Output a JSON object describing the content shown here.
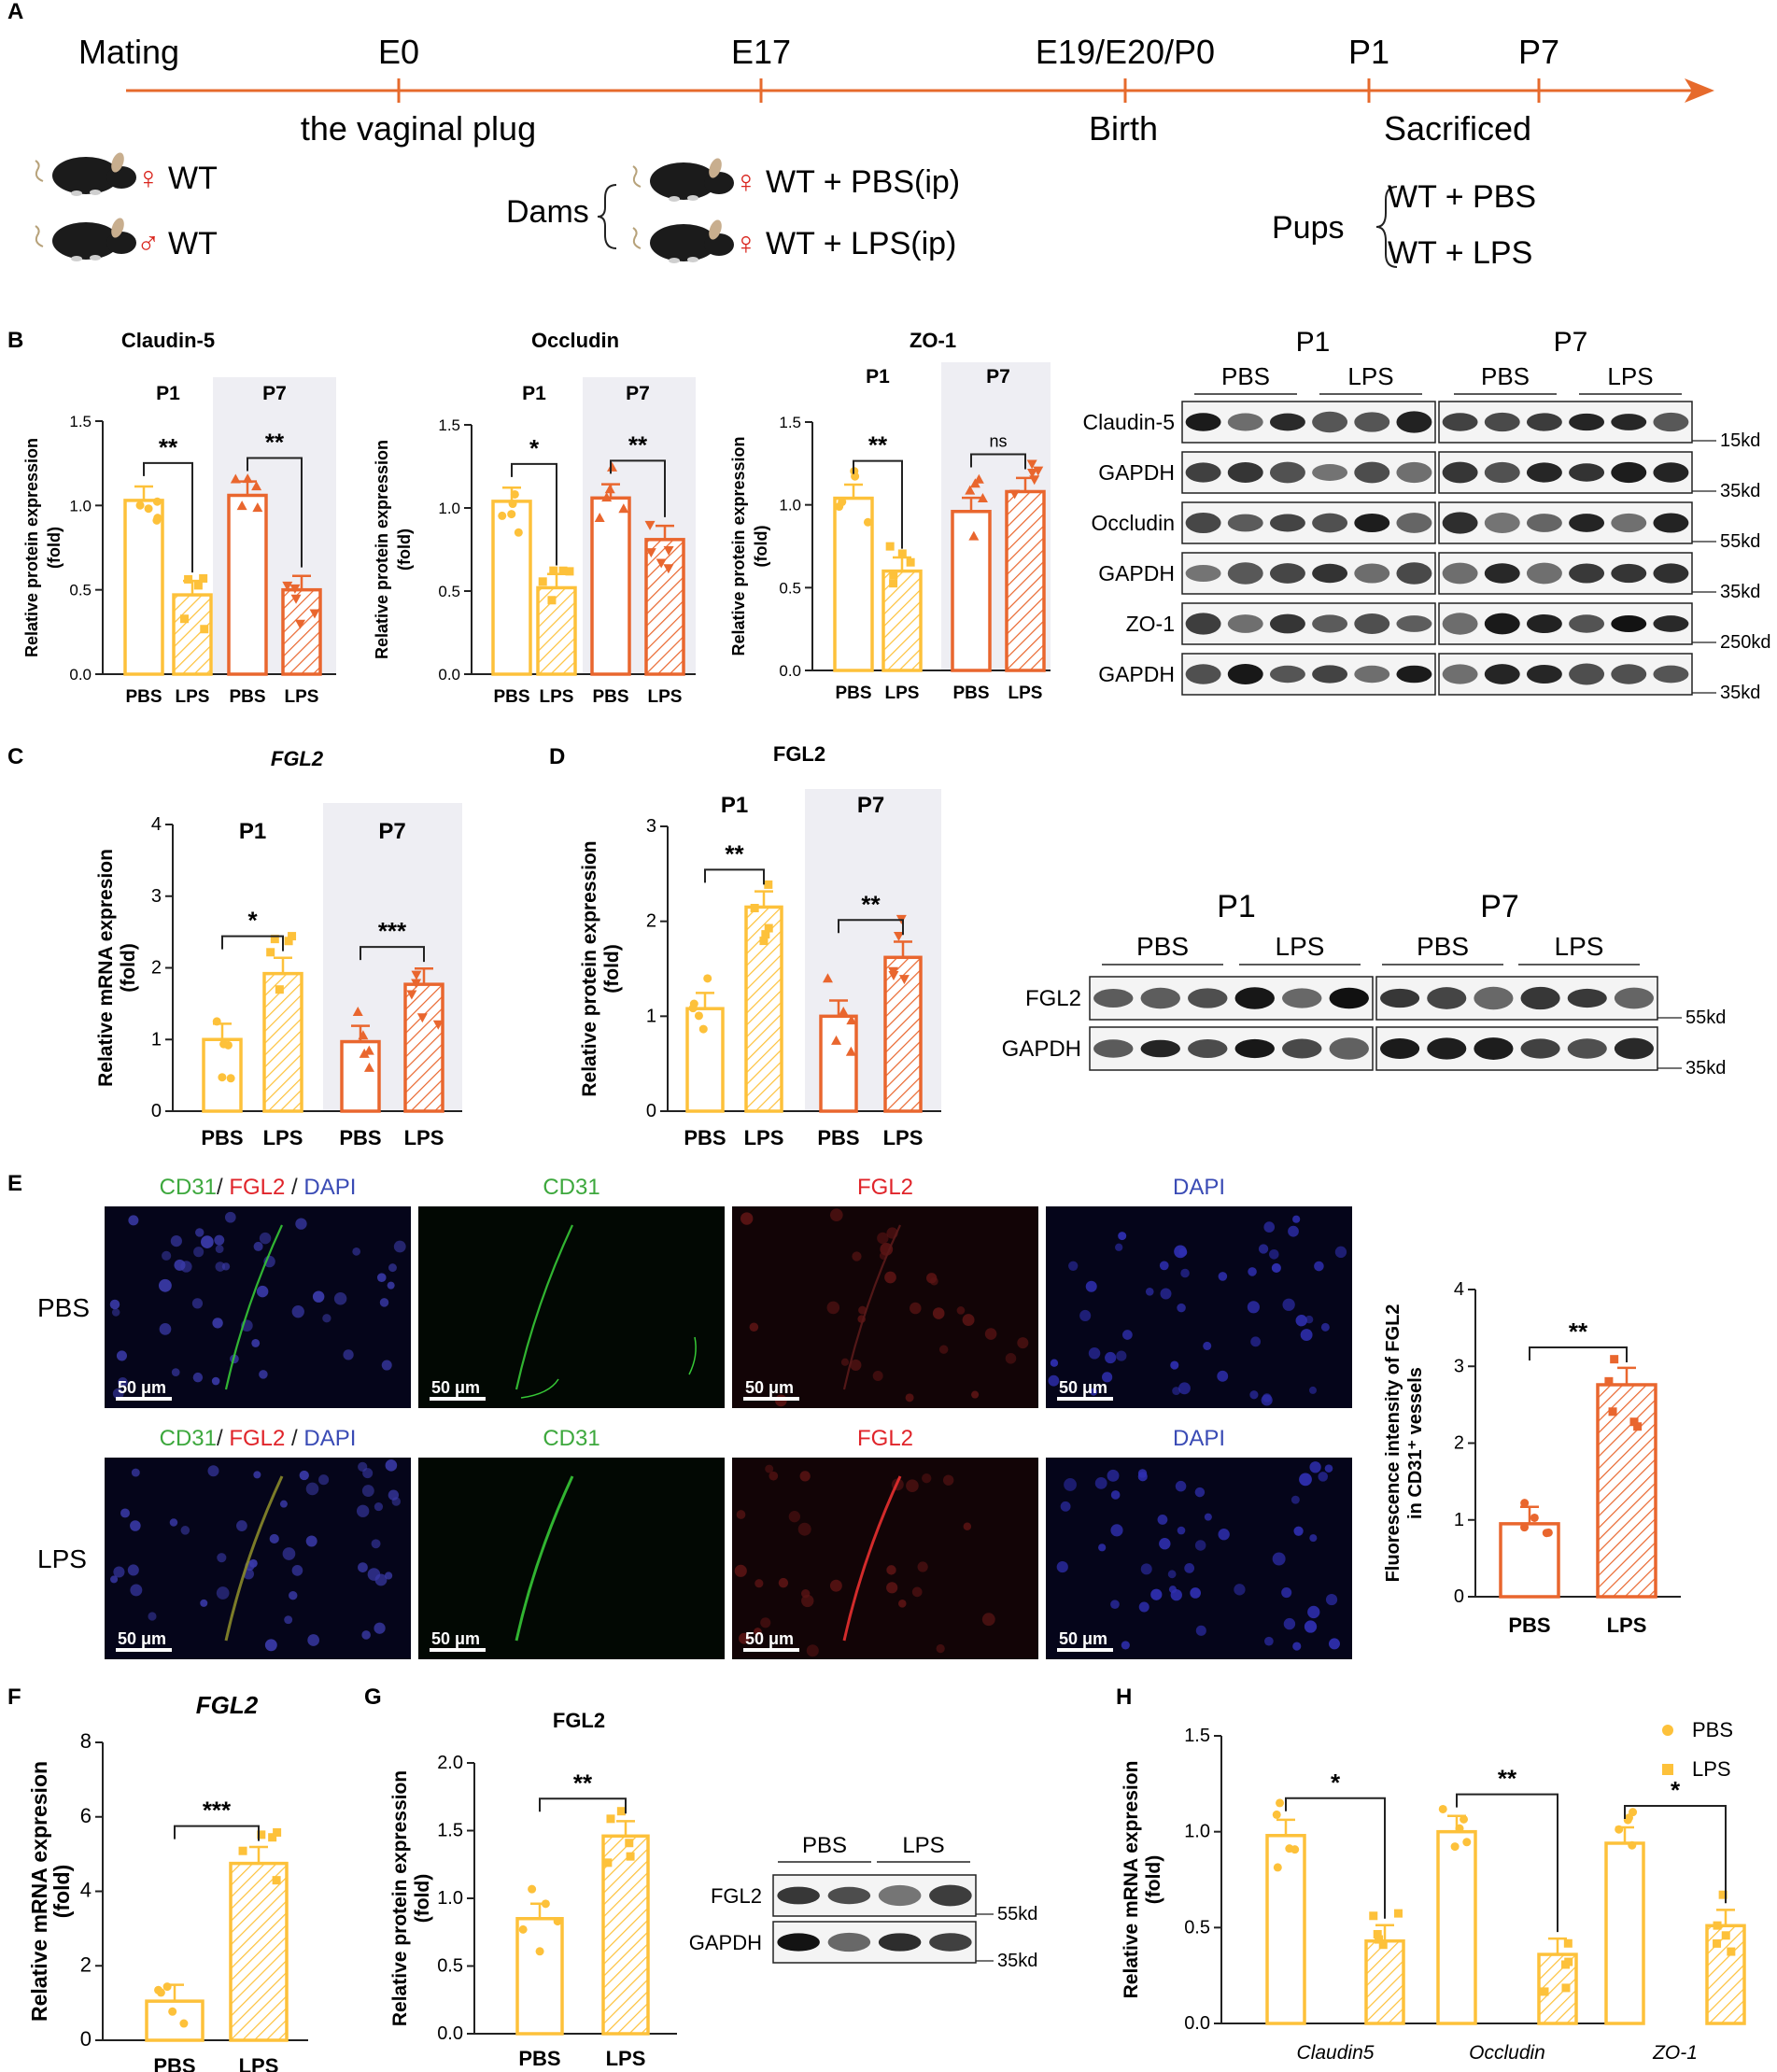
{
  "colors": {
    "yellow": "#FDC13A",
    "orange": "#E9662E",
    "grey_band": "#EEEEF3",
    "arrow": "#E66A2C",
    "sex": "#D9241C"
  },
  "panels": {
    "A": "A",
    "B": "B",
    "C": "C",
    "D": "D",
    "E": "E",
    "F": "F",
    "G": "G",
    "H": "H"
  },
  "panel_a": {
    "timeline": [
      {
        "label": "Mating",
        "sub": ""
      },
      {
        "label": "E0",
        "sub": "the vaginal plug"
      },
      {
        "label": "E17",
        "sub": ""
      },
      {
        "label": "E19/E20/P0",
        "sub": "Birth"
      },
      {
        "label": "P1",
        "sub": ""
      },
      {
        "label": "P7",
        "sub": ""
      }
    ],
    "sacrificed": "Sacrificed",
    "parents": [
      {
        "sym": "♀",
        "label": "WT"
      },
      {
        "sym": "♂",
        "label": "WT"
      }
    ],
    "dams_label": "Dams",
    "dams": [
      {
        "sym": "♀",
        "label": "WT + PBS(ip)"
      },
      {
        "sym": "♀",
        "label": "WT + LPS(ip)"
      }
    ],
    "pups_label": "Pups",
    "pups": [
      "WT + PBS",
      "WT + LPS"
    ],
    "mouse_icon": "mouse-icon"
  },
  "chart_data": [
    {
      "id": "B1",
      "type": "bar",
      "title": "Claudin-5",
      "ylabel": "Relative protein expression\n(fold)",
      "ylim": [
        0,
        1.5
      ],
      "yticks": [
        "0.0",
        "0.5",
        "1.0",
        "1.5"
      ],
      "categories": [
        "PBS",
        "LPS",
        "PBS",
        "LPS"
      ],
      "groups": [
        "P1",
        "P7"
      ],
      "values": [
        1.03,
        0.47,
        1.06,
        0.5
      ],
      "sig": [
        "**",
        "**"
      ]
    },
    {
      "id": "B2",
      "type": "bar",
      "title": "Occludin",
      "ylabel": "Relative protein expression\n(fold)",
      "ylim": [
        0,
        1.5
      ],
      "yticks": [
        "0.0",
        "0.5",
        "1.0",
        "1.5"
      ],
      "categories": [
        "PBS",
        "LPS",
        "PBS",
        "LPS"
      ],
      "groups": [
        "P1",
        "P7"
      ],
      "values": [
        1.04,
        0.52,
        1.06,
        0.81
      ],
      "sig": [
        "*",
        "**"
      ]
    },
    {
      "id": "B3",
      "type": "bar",
      "title": "ZO-1",
      "ylabel": "Relative protein expression\n(fold)",
      "ylim": [
        0,
        1.5
      ],
      "yticks": [
        "0.0",
        "0.5",
        "1.0",
        "1.5"
      ],
      "categories": [
        "PBS",
        "LPS",
        "PBS",
        "LPS"
      ],
      "groups": [
        "P1",
        "P7"
      ],
      "values": [
        1.04,
        0.6,
        0.96,
        1.08
      ],
      "sig": [
        "**",
        "ns"
      ]
    },
    {
      "id": "C",
      "type": "bar",
      "title": "FGL2",
      "ylabel": "Relative mRNA expresion\n(fold)",
      "ylim": [
        0,
        4
      ],
      "yticks": [
        "0",
        "1",
        "2",
        "3",
        "4"
      ],
      "categories": [
        "PBS",
        "LPS",
        "PBS",
        "LPS"
      ],
      "groups": [
        "P1",
        "P7"
      ],
      "values": [
        1.0,
        1.92,
        0.97,
        1.77
      ],
      "sig": [
        "*",
        "***"
      ]
    },
    {
      "id": "D",
      "type": "bar",
      "title": "FGL2",
      "ylabel": "Relative protein expression\n(fold)",
      "ylim": [
        0,
        3
      ],
      "yticks": [
        "0",
        "1",
        "2",
        "3"
      ],
      "categories": [
        "PBS",
        "LPS",
        "PBS",
        "LPS"
      ],
      "groups": [
        "P1",
        "P7"
      ],
      "values": [
        1.08,
        2.15,
        1.0,
        1.62
      ],
      "sig": [
        "**",
        "**"
      ]
    },
    {
      "id": "E",
      "type": "bar",
      "title": "",
      "ylabel": "Fluorescence intensity of FGL2\nin CD31⁺ vessels",
      "ylim": [
        0,
        4
      ],
      "yticks": [
        "0",
        "1",
        "2",
        "3",
        "4"
      ],
      "categories": [
        "PBS",
        "LPS"
      ],
      "values": [
        0.95,
        2.76
      ],
      "sig": [
        "**"
      ]
    },
    {
      "id": "F",
      "type": "bar",
      "title": "FGL2",
      "ylabel": "Relative mRNA expresion\n(fold)",
      "ylim": [
        0,
        8
      ],
      "yticks": [
        "0",
        "2",
        "4",
        "6",
        "8"
      ],
      "categories": [
        "PBS",
        "LPS"
      ],
      "values": [
        1.05,
        4.75
      ],
      "sig": [
        "***"
      ]
    },
    {
      "id": "G",
      "type": "bar",
      "title": "FGL2",
      "ylabel": "Relative protein expression\n(fold)",
      "ylim": [
        0,
        2
      ],
      "yticks": [
        "0.0",
        "0.5",
        "1.0",
        "1.5",
        "2.0"
      ],
      "categories": [
        "PBS",
        "LPS"
      ],
      "values": [
        0.85,
        1.46
      ],
      "sig": [
        "**"
      ]
    },
    {
      "id": "H",
      "type": "bar",
      "title": "",
      "ylabel": "Relative mRNA expresion\n(fold)",
      "ylim": [
        0,
        1.5
      ],
      "yticks": [
        "0.0",
        "0.5",
        "1.0",
        "1.5"
      ],
      "categories": [
        "Claudin5",
        "Occludin",
        "ZO-1"
      ],
      "series": [
        {
          "name": "PBS",
          "values": [
            0.98,
            1.0,
            0.94
          ]
        },
        {
          "name": "LPS",
          "values": [
            0.43,
            0.36,
            0.51
          ]
        }
      ],
      "sig": [
        "*",
        "**",
        "*"
      ]
    }
  ],
  "blots": {
    "B": {
      "groups": [
        "P1",
        "P7"
      ],
      "conds": [
        "PBS",
        "LPS",
        "PBS",
        "LPS"
      ],
      "rows": [
        "Claudin-5",
        "GAPDH",
        "Occludin",
        "GAPDH",
        "ZO-1",
        "GAPDH"
      ],
      "kd": [
        "15kd",
        "35kd",
        "55kd",
        "35kd",
        "250kd",
        "35kd"
      ]
    },
    "D": {
      "groups": [
        "P1",
        "P7"
      ],
      "conds": [
        "PBS",
        "LPS",
        "PBS",
        "LPS"
      ],
      "rows": [
        "FGL2",
        "GAPDH"
      ],
      "kd": [
        "55kd",
        "35kd"
      ]
    },
    "G": {
      "conds": [
        "PBS",
        "LPS"
      ],
      "rows": [
        "FGL2",
        "GAPDH"
      ],
      "kd": [
        "55kd",
        "35kd"
      ]
    }
  },
  "micro": {
    "cols": [
      {
        "parts": [
          {
            "t": "CD31",
            "c": "#3DA83D"
          },
          {
            "t": "/ ",
            "c": "#222"
          },
          {
            "t": "FGL2",
            "c": "#E0242A"
          },
          {
            "t": " / ",
            "c": "#222"
          },
          {
            "t": "DAPI",
            "c": "#3A4BB5"
          }
        ]
      },
      {
        "parts": [
          {
            "t": "CD31",
            "c": "#3DA83D"
          }
        ]
      },
      {
        "parts": [
          {
            "t": "FGL2",
            "c": "#E0242A"
          }
        ]
      },
      {
        "parts": [
          {
            "t": "DAPI",
            "c": "#3A4BB5"
          }
        ]
      }
    ],
    "rows": [
      "PBS",
      "LPS"
    ],
    "scale": "50 μm"
  }
}
